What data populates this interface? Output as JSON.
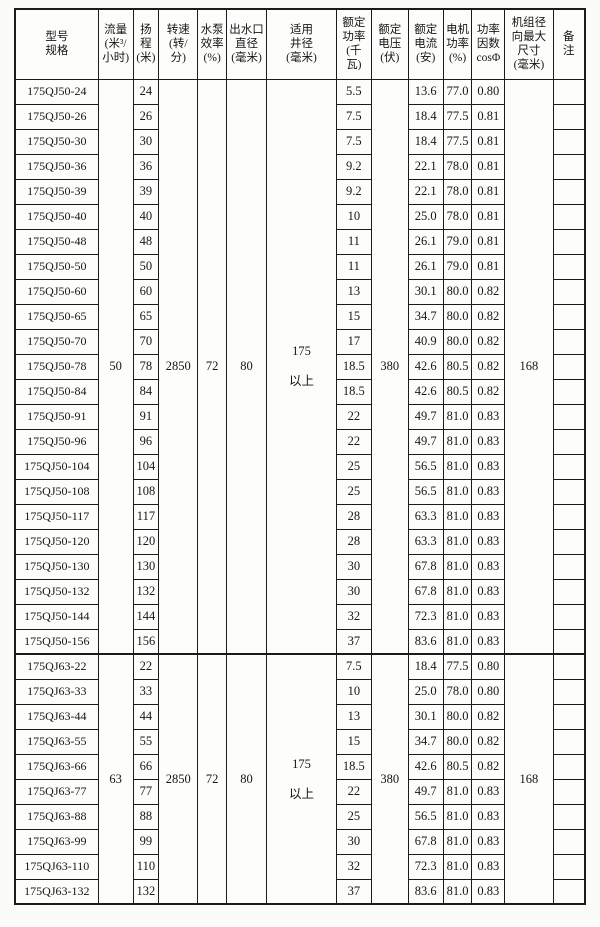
{
  "table": {
    "columns": [
      {
        "key": "model",
        "label": "型号\n规格"
      },
      {
        "key": "flow",
        "label": "流量\n(米³/\n小时)"
      },
      {
        "key": "head",
        "label": "扬\n程\n(米)"
      },
      {
        "key": "speed",
        "label": "转速\n(转/\n分)"
      },
      {
        "key": "pump_eff",
        "label": "水泵\n效率\n(%)"
      },
      {
        "key": "outlet",
        "label": "出水口\n直径\n(毫米)"
      },
      {
        "key": "well",
        "label": "适用\n井径\n(毫米)"
      },
      {
        "key": "power",
        "label": "额定\n功率\n(千\n瓦)"
      },
      {
        "key": "voltage",
        "label": "额定\n电压\n(伏)"
      },
      {
        "key": "current",
        "label": "额定\n电流\n(安)"
      },
      {
        "key": "motor_eff",
        "label": "电机\n功率\n(%)"
      },
      {
        "key": "cos",
        "label": "功率\n因数\ncosΦ"
      },
      {
        "key": "dim",
        "label": "机组径\n向最大\n尺寸\n(毫米)"
      },
      {
        "key": "remark",
        "label": "备\n注"
      }
    ],
    "sections": [
      {
        "shared": {
          "flow": "50",
          "speed": "2850",
          "pump_eff": "72",
          "outlet": "80",
          "well": "175\n以上",
          "voltage": "380",
          "dim": "168",
          "remark": ""
        },
        "rows": [
          [
            "175QJ50-24",
            "24",
            "5.5",
            "13.6",
            "77.0",
            "0.80"
          ],
          [
            "175QJ50-26",
            "26",
            "7.5",
            "18.4",
            "77.5",
            "0.81"
          ],
          [
            "175QJ50-30",
            "30",
            "7.5",
            "18.4",
            "77.5",
            "0.81"
          ],
          [
            "175QJ50-36",
            "36",
            "9.2",
            "22.1",
            "78.0",
            "0.81"
          ],
          [
            "175QJ50-39",
            "39",
            "9.2",
            "22.1",
            "78.0",
            "0.81"
          ],
          [
            "175QJ50-40",
            "40",
            "10",
            "25.0",
            "78.0",
            "0.81"
          ],
          [
            "175QJ50-48",
            "48",
            "11",
            "26.1",
            "79.0",
            "0.81"
          ],
          [
            "175QJ50-50",
            "50",
            "11",
            "26.1",
            "79.0",
            "0.81"
          ],
          [
            "175QJ50-60",
            "60",
            "13",
            "30.1",
            "80.0",
            "0.82"
          ],
          [
            "175QJ50-65",
            "65",
            "15",
            "34.7",
            "80.0",
            "0.82"
          ],
          [
            "175QJ50-70",
            "70",
            "17",
            "40.9",
            "80.0",
            "0.82"
          ],
          [
            "175QJ50-78",
            "78",
            "18.5",
            "42.6",
            "80.5",
            "0.82"
          ],
          [
            "175QJ50-84",
            "84",
            "18.5",
            "42.6",
            "80.5",
            "0.82"
          ],
          [
            "175QJ50-91",
            "91",
            "22",
            "49.7",
            "81.0",
            "0.83"
          ],
          [
            "175QJ50-96",
            "96",
            "22",
            "49.7",
            "81.0",
            "0.83"
          ],
          [
            "175QJ50-104",
            "104",
            "25",
            "56.5",
            "81.0",
            "0.83"
          ],
          [
            "175QJ50-108",
            "108",
            "25",
            "56.5",
            "81.0",
            "0.83"
          ],
          [
            "175QJ50-117",
            "117",
            "28",
            "63.3",
            "81.0",
            "0.83"
          ],
          [
            "175QJ50-120",
            "120",
            "28",
            "63.3",
            "81.0",
            "0.83"
          ],
          [
            "175QJ50-130",
            "130",
            "30",
            "67.8",
            "81.0",
            "0.83"
          ],
          [
            "175QJ50-132",
            "132",
            "30",
            "67.8",
            "81.0",
            "0.83"
          ],
          [
            "175QJ50-144",
            "144",
            "32",
            "72.3",
            "81.0",
            "0.83"
          ],
          [
            "175QJ50-156",
            "156",
            "37",
            "83.6",
            "81.0",
            "0.83"
          ]
        ]
      },
      {
        "shared": {
          "flow": "63",
          "speed": "2850",
          "pump_eff": "72",
          "outlet": "80",
          "well": "175\n以上",
          "voltage": "380",
          "dim": "168",
          "remark": ""
        },
        "rows": [
          [
            "175QJ63-22",
            "22",
            "7.5",
            "18.4",
            "77.5",
            "0.80"
          ],
          [
            "175QJ63-33",
            "33",
            "10",
            "25.0",
            "78.0",
            "0.80"
          ],
          [
            "175QJ63-44",
            "44",
            "13",
            "30.1",
            "80.0",
            "0.82"
          ],
          [
            "175QJ63-55",
            "55",
            "15",
            "34.7",
            "80.0",
            "0.82"
          ],
          [
            "175QJ63-66",
            "66",
            "18.5",
            "42.6",
            "80.5",
            "0.82"
          ],
          [
            "175QJ63-77",
            "77",
            "22",
            "49.7",
            "81.0",
            "0.83"
          ],
          [
            "175QJ63-88",
            "88",
            "25",
            "56.5",
            "81.0",
            "0.83"
          ],
          [
            "175QJ63-99",
            "99",
            "30",
            "67.8",
            "81.0",
            "0.83"
          ],
          [
            "175QJ63-110",
            "110",
            "32",
            "72.3",
            "81.0",
            "0.83"
          ],
          [
            "175QJ63-132",
            "132",
            "37",
            "83.6",
            "81.0",
            "0.83"
          ]
        ]
      }
    ]
  }
}
